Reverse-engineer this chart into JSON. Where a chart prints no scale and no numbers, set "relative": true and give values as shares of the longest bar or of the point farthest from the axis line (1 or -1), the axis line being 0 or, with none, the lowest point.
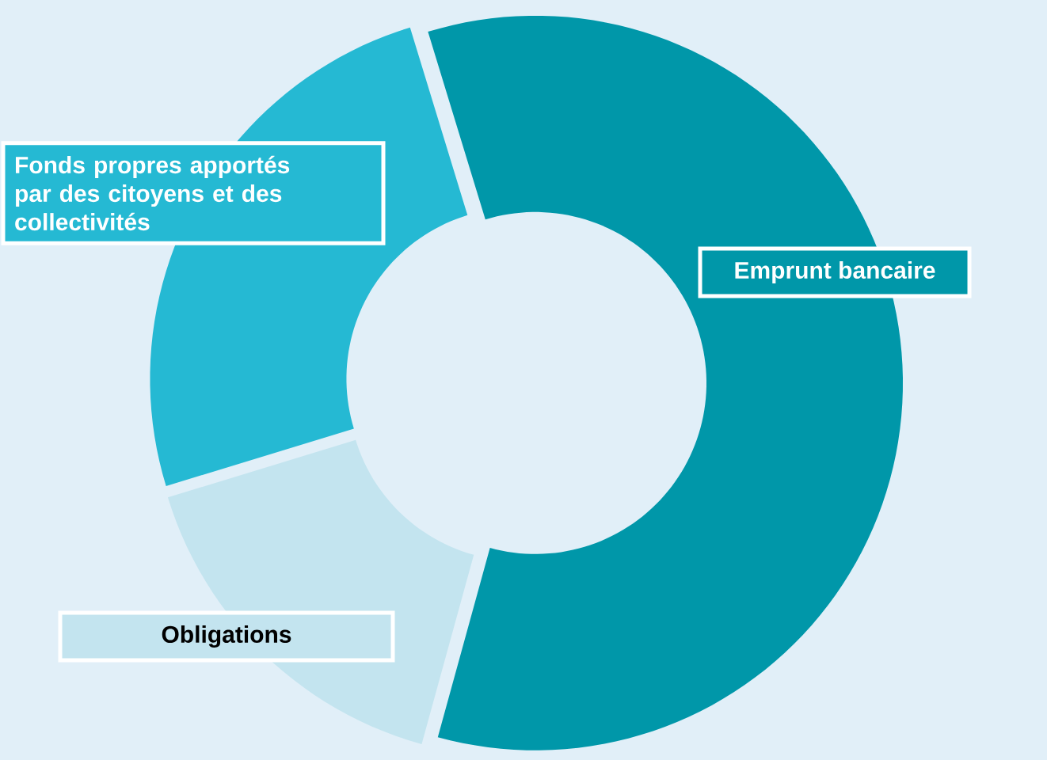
{
  "chart_data": {
    "type": "donut",
    "relative": true,
    "categories": [
      "Emprunt bancaire",
      "Obligations",
      "Fonds propres apportés par des citoyens et des collectivités"
    ],
    "values": [
      59,
      16,
      25
    ],
    "colors": [
      "#0097a9",
      "#c3e4ef",
      "#25b9d3"
    ]
  }
}
